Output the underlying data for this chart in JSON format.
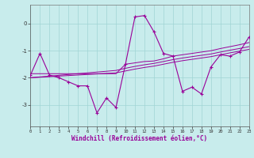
{
  "xlabel": "Windchill (Refroidissement éolien,°C)",
  "background_color": "#c8ecec",
  "grid_color": "#a0d4d4",
  "line_color": "#990099",
  "x_hours": [
    0,
    1,
    2,
    3,
    4,
    5,
    6,
    7,
    8,
    9,
    10,
    11,
    12,
    13,
    14,
    15,
    16,
    17,
    18,
    19,
    20,
    21,
    22,
    23
  ],
  "series": {
    "main": [
      -1.9,
      -1.1,
      -1.9,
      -2.0,
      -2.15,
      -2.3,
      -2.3,
      -3.3,
      -2.75,
      -3.1,
      -1.5,
      0.25,
      0.3,
      -0.3,
      -1.1,
      -1.2,
      -2.5,
      -2.35,
      -2.6,
      -1.6,
      -1.15,
      -1.2,
      -1.05,
      -0.5
    ],
    "avg1": [
      -1.85,
      -1.85,
      -1.85,
      -1.85,
      -1.85,
      -1.85,
      -1.85,
      -1.85,
      -1.85,
      -1.85,
      -1.5,
      -1.45,
      -1.4,
      -1.38,
      -1.3,
      -1.2,
      -1.15,
      -1.1,
      -1.05,
      -1.0,
      -0.92,
      -0.85,
      -0.78,
      -0.7
    ],
    "avg2": [
      -2.0,
      -1.97,
      -1.94,
      -1.91,
      -1.88,
      -1.85,
      -1.82,
      -1.79,
      -1.76,
      -1.73,
      -1.65,
      -1.58,
      -1.52,
      -1.47,
      -1.4,
      -1.33,
      -1.27,
      -1.22,
      -1.17,
      -1.12,
      -1.05,
      -0.98,
      -0.92,
      -0.85
    ],
    "avg3": [
      -2.0,
      -1.98,
      -1.96,
      -1.94,
      -1.92,
      -1.9,
      -1.88,
      -1.86,
      -1.84,
      -1.82,
      -1.75,
      -1.68,
      -1.62,
      -1.57,
      -1.5,
      -1.43,
      -1.37,
      -1.32,
      -1.27,
      -1.22,
      -1.15,
      -1.08,
      -1.02,
      -0.95
    ]
  },
  "ylim": [
    -3.8,
    0.7
  ],
  "yticks": [
    0,
    -1,
    -2,
    -3
  ],
  "xlim": [
    0,
    23
  ],
  "figsize": [
    3.2,
    2.0
  ],
  "dpi": 100
}
